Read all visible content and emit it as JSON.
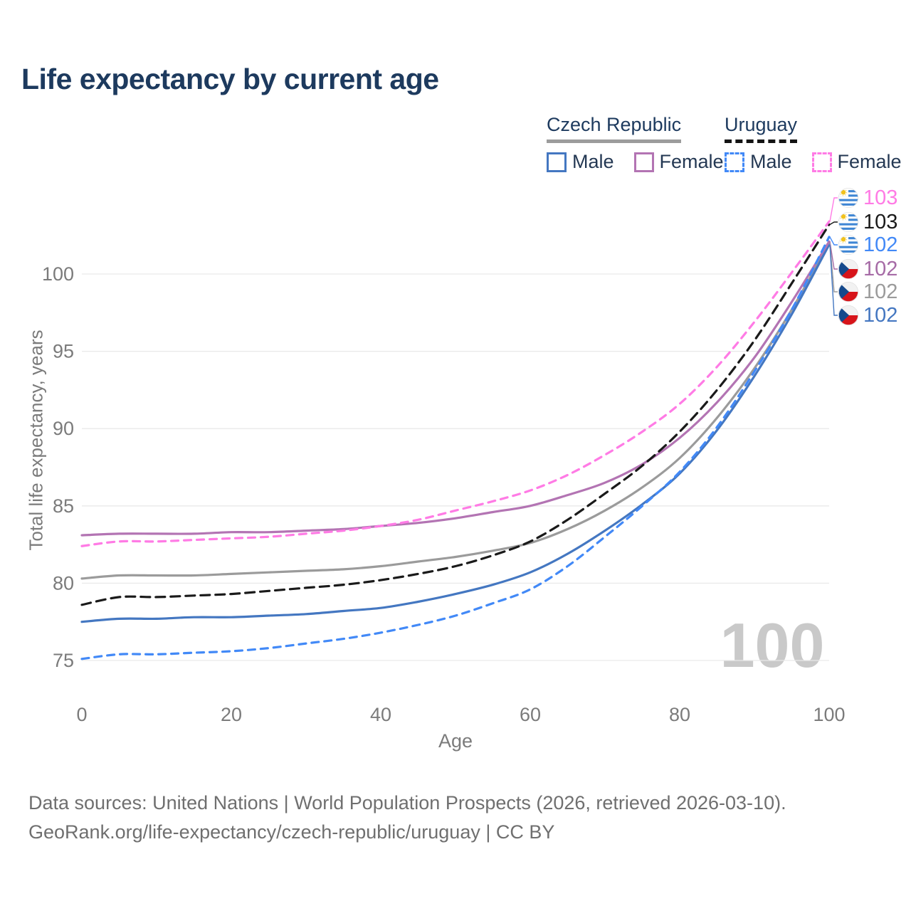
{
  "title": "Life expectancy by current age",
  "legend": {
    "groups": [
      {
        "id": "czech",
        "title": "Czech Republic",
        "line_style": "solid",
        "underline_color": "#9c9c9c",
        "items": [
          {
            "label": "Male",
            "color": "#4477c1",
            "dash": false
          },
          {
            "label": "Female",
            "color": "#b374b3",
            "dash": false
          }
        ]
      },
      {
        "id": "uruguay",
        "title": "Uruguay",
        "line_style": "dashed",
        "underline_color": "#141414",
        "items": [
          {
            "label": "Male",
            "color": "#4289f7",
            "dash": true
          },
          {
            "label": "Female",
            "color": "#ff7be5",
            "dash": true
          }
        ]
      }
    ]
  },
  "chart_data": {
    "type": "line",
    "title": "Life expectancy by current age",
    "xlabel": "Age",
    "ylabel": "Total life expectancy, years",
    "x_ticks": [
      0,
      20,
      40,
      60,
      80,
      100
    ],
    "y_ticks": [
      75,
      80,
      85,
      90,
      95,
      100
    ],
    "xlim": [
      0,
      100
    ],
    "ylim": [
      73.5,
      104.5
    ],
    "grid": "horizontal",
    "legend_position": "top-right",
    "watermark": "100",
    "x": [
      0,
      5,
      10,
      15,
      20,
      25,
      30,
      35,
      40,
      45,
      50,
      55,
      60,
      65,
      70,
      75,
      80,
      85,
      90,
      95,
      100
    ],
    "series": [
      {
        "id": "czech-total",
        "name": "Czech Republic (total)",
        "country": "Czech Republic",
        "sex": "total",
        "color": "#9b9b9b",
        "dash": false,
        "values": [
          80.3,
          80.5,
          80.5,
          80.5,
          80.6,
          80.7,
          80.8,
          80.9,
          81.1,
          81.4,
          81.7,
          82.1,
          82.6,
          83.5,
          84.7,
          86.2,
          88.1,
          90.7,
          93.9,
          97.7,
          102.0
        ]
      },
      {
        "id": "czech-male",
        "name": "Czech Republic Male",
        "country": "Czech Republic",
        "sex": "male",
        "color": "#4477c1",
        "dash": false,
        "values": [
          77.5,
          77.7,
          77.7,
          77.8,
          77.8,
          77.9,
          78.0,
          78.2,
          78.4,
          78.8,
          79.3,
          79.9,
          80.7,
          81.9,
          83.4,
          85.1,
          87.1,
          89.9,
          93.4,
          97.4,
          101.9
        ]
      },
      {
        "id": "czech-female",
        "name": "Czech Republic Female",
        "country": "Czech Republic",
        "sex": "female",
        "color": "#b374b3",
        "dash": false,
        "values": [
          83.1,
          83.2,
          83.2,
          83.2,
          83.3,
          83.3,
          83.4,
          83.5,
          83.7,
          83.9,
          84.2,
          84.6,
          85.0,
          85.7,
          86.5,
          87.7,
          89.4,
          91.7,
          94.6,
          98.2,
          102.1
        ]
      },
      {
        "id": "uruguay-total",
        "name": "Uruguay (total)",
        "country": "Uruguay",
        "sex": "total",
        "color": "#1a1a1a",
        "dash": true,
        "values": [
          78.6,
          79.1,
          79.1,
          79.2,
          79.3,
          79.5,
          79.7,
          79.9,
          80.2,
          80.6,
          81.1,
          81.8,
          82.7,
          84.1,
          85.8,
          87.6,
          89.8,
          92.5,
          95.7,
          99.4,
          103.2
        ]
      },
      {
        "id": "uruguay-male",
        "name": "Uruguay Male",
        "country": "Uruguay",
        "sex": "male",
        "color": "#4289f7",
        "dash": true,
        "values": [
          75.1,
          75.4,
          75.4,
          75.5,
          75.6,
          75.8,
          76.1,
          76.4,
          76.8,
          77.3,
          77.9,
          78.7,
          79.6,
          81.1,
          83.0,
          85.0,
          87.2,
          90.1,
          93.7,
          97.7,
          102.4
        ]
      },
      {
        "id": "uruguay-female",
        "name": "Uruguay Female",
        "country": "Uruguay",
        "sex": "female",
        "color": "#ff7be5",
        "dash": true,
        "values": [
          82.4,
          82.7,
          82.7,
          82.8,
          82.9,
          83.0,
          83.2,
          83.4,
          83.7,
          84.1,
          84.7,
          85.3,
          86.0,
          87.0,
          88.3,
          89.8,
          91.6,
          94.0,
          96.9,
          100.1,
          103.4
        ]
      }
    ]
  },
  "end_labels": [
    {
      "flag": "uruguay",
      "value": "103",
      "color": "#ff7be5",
      "series": "uruguay-female"
    },
    {
      "flag": "uruguay",
      "value": "103",
      "color": "#1a1a1a",
      "series": "uruguay-total"
    },
    {
      "flag": "uruguay",
      "value": "102",
      "color": "#4289f7",
      "series": "uruguay-male"
    },
    {
      "flag": "czech",
      "value": "102",
      "color": "#a66ba6",
      "series": "czech-female"
    },
    {
      "flag": "czech",
      "value": "102",
      "color": "#9b9b9b",
      "series": "czech-total"
    },
    {
      "flag": "czech",
      "value": "102",
      "color": "#4477c1",
      "series": "czech-male"
    }
  ],
  "footer": {
    "line1": "Data sources: United Nations | World Population Prospects (2026, retrieved 2026-03-10).",
    "line2": "GeoRank.org/life-expectancy/czech-republic/uruguay | CC BY"
  }
}
